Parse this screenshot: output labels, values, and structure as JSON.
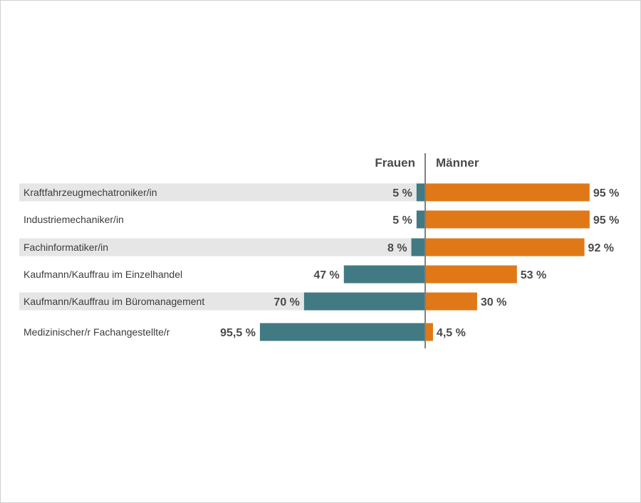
{
  "chart_data": {
    "type": "bar",
    "orientation": "horizontal-diverging",
    "left_header": "Frauen",
    "right_header": "Männer",
    "categories": [
      "Kraftfahrzeugmechatroniker/in",
      "Industriemechaniker/in",
      "Fachinformatiker/in",
      "Kaufmann/Kauffrau im Einzelhandel",
      "Kaufmann/Kauffrau im Büromanagement",
      "Medizinischer/r Fachangestellte/r"
    ],
    "series": [
      {
        "name": "Frauen",
        "values": [
          5,
          5,
          8,
          47,
          70,
          95.5
        ],
        "labels": [
          "5 %",
          "5 %",
          "8 %",
          "47 %",
          "70 %",
          "95,5 %"
        ],
        "color": "#417a82"
      },
      {
        "name": "Männer",
        "values": [
          95,
          95,
          92,
          53,
          30,
          4.5
        ],
        "labels": [
          "95 %",
          "95 %",
          "92 %",
          "53 %",
          "30 %",
          "4,5 %"
        ],
        "color": "#e07818"
      }
    ],
    "xlim": [
      0,
      100
    ],
    "row_stripe_color": "#e6e6e6",
    "divider_color": "#808080"
  }
}
